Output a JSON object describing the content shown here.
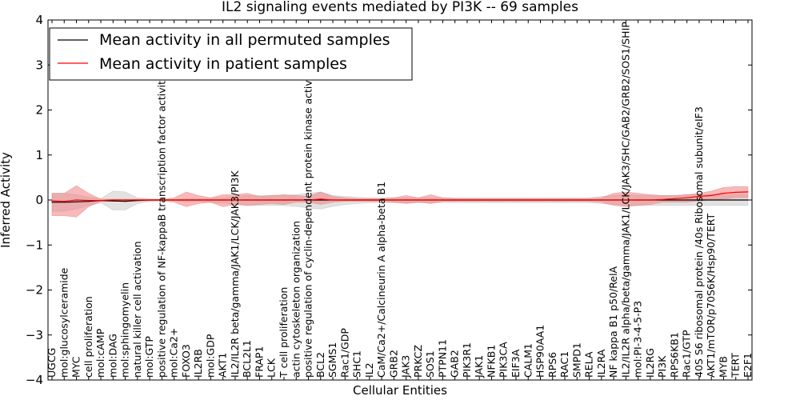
{
  "chart_data": {
    "type": "line",
    "title": "IL2 signaling events mediated by PI3K -- 69 samples",
    "xlabel": "Cellular Entities",
    "ylabel": "Inferred Activity",
    "ylim": [
      -4,
      4
    ],
    "yticks": [
      "−4",
      "−3",
      "−2",
      "−1",
      "0",
      "1",
      "2",
      "3",
      "4"
    ],
    "ytick_values": [
      -4,
      -3,
      -2,
      -1,
      0,
      1,
      2,
      3,
      4
    ],
    "categories": [
      "UGCG",
      "mol:glucosylceramide",
      "MYC",
      "cell proliferation",
      "mol:cAMP",
      "mol:DAG",
      "mol:sphingomyelin",
      "natural killer cell activation",
      "mol:GTP",
      "positive regulation of NF-kappaB transcription factor activity",
      "mol:Ca2+",
      "FOXO3",
      "IL2RB",
      "mol:GDP",
      "AKT1",
      "IL2/IL2R beta/gamma/JAK1/LCK/JAK3/PI3K",
      "BCL2L1",
      "FRAP1",
      "LCK",
      "T cell proliferation",
      "actin cytoskeleton organization",
      "positive regulation of cyclin-dependent protein kinase activity",
      "BCL2",
      "SGMS1",
      "Rac1/GDP",
      "SHC1",
      "IL2",
      "CaM/Ca2+/Calcineurin A alpha-beta B1",
      "GRB2",
      "JAK3",
      "PRKCZ",
      "SOS1",
      "PTPN11",
      "GAB2",
      "PIK3R1",
      "JAK1",
      "NFKB1",
      "PIK3CA",
      "EIF3A",
      "CALM1",
      "HSP90AA1",
      "RPS6",
      "RAC1",
      "SMPD1",
      "RELA",
      "IL2RA",
      "NF kappa B1 p50/RelA",
      "IL2/IL2R alpha/beta/gamma/JAK1/LCK/JAK3/SHC/GAB2/GRB2/SOS1/SHIP",
      "mol:PI-3-4-5-P3",
      "IL2RG",
      "PI3K",
      "RPS6KB1",
      "Rac1/GTP",
      "40S S6 ribosomal protein /40s Ribosomal subunit/eIF3",
      "AKT1/mTOR/p70S6K/Hsp90/TERT",
      "MYB",
      "TERT",
      "E2F1"
    ],
    "series": [
      {
        "name": "Mean activity in all permuted samples",
        "color": "#000000",
        "values": [
          -0.05,
          -0.05,
          -0.04,
          -0.03,
          -0.01,
          -0.02,
          -0.03,
          -0.01,
          0.0,
          0.0,
          0.0,
          0.0,
          0.0,
          0.0,
          0.0,
          0.0,
          0.0,
          0.0,
          0.0,
          0.0,
          0.0,
          0.0,
          0.0,
          0.0,
          0.0,
          0.0,
          0.0,
          0.0,
          0.0,
          0.0,
          0.0,
          0.0,
          0.0,
          0.0,
          0.0,
          0.0,
          0.0,
          0.0,
          0.0,
          0.0,
          0.0,
          0.0,
          0.0,
          0.0,
          0.0,
          0.0,
          0.0,
          0.0,
          0.0,
          0.0,
          0.0,
          0.0,
          0.0,
          0.0,
          0.0,
          0.0,
          0.0,
          0.0
        ],
        "band_upper": [
          0.15,
          0.15,
          0.12,
          0.06,
          0.03,
          0.2,
          0.18,
          0.05,
          0.02,
          0.01,
          0.01,
          0.03,
          0.02,
          0.05,
          0.05,
          0.08,
          0.1,
          0.1,
          0.1,
          0.1,
          0.12,
          0.15,
          0.18,
          0.1,
          0.08,
          0.06,
          0.05,
          0.05,
          0.05,
          0.05,
          0.05,
          0.05,
          0.05,
          0.05,
          0.05,
          0.05,
          0.05,
          0.05,
          0.05,
          0.05,
          0.05,
          0.05,
          0.05,
          0.05,
          0.05,
          0.08,
          0.1,
          0.12,
          0.1,
          0.1,
          0.1,
          0.1,
          0.12,
          0.12,
          0.12,
          0.12,
          0.12,
          0.12
        ],
        "band_lower": [
          -0.25,
          -0.25,
          -0.2,
          -0.12,
          -0.06,
          -0.22,
          -0.22,
          -0.08,
          -0.03,
          -0.01,
          -0.01,
          -0.04,
          -0.03,
          -0.06,
          -0.06,
          -0.1,
          -0.12,
          -0.12,
          -0.12,
          -0.12,
          -0.14,
          -0.18,
          -0.2,
          -0.14,
          -0.1,
          -0.08,
          -0.06,
          -0.06,
          -0.06,
          -0.06,
          -0.06,
          -0.06,
          -0.06,
          -0.06,
          -0.06,
          -0.06,
          -0.06,
          -0.06,
          -0.06,
          -0.06,
          -0.06,
          -0.06,
          -0.06,
          -0.06,
          -0.06,
          -0.08,
          -0.1,
          -0.12,
          -0.12,
          -0.12,
          -0.12,
          -0.12,
          -0.12,
          -0.12,
          -0.12,
          -0.12,
          -0.12,
          -0.12
        ]
      },
      {
        "name": "Mean activity in patient samples",
        "color": "#ff0000",
        "values": [
          -0.02,
          -0.03,
          0.0,
          -0.01,
          -0.01,
          0.0,
          0.0,
          0.0,
          0.0,
          0.0,
          0.0,
          0.0,
          0.0,
          0.0,
          0.0,
          0.0,
          0.0,
          0.0,
          0.0,
          0.0,
          0.0,
          0.0,
          0.02,
          0.0,
          0.0,
          0.0,
          0.0,
          0.0,
          0.0,
          0.0,
          0.0,
          0.0,
          0.0,
          0.0,
          0.0,
          0.0,
          0.0,
          0.0,
          0.0,
          0.0,
          0.0,
          0.0,
          0.0,
          0.0,
          0.0,
          0.0,
          0.0,
          0.0,
          0.0,
          0.0,
          0.01,
          0.03,
          0.05,
          0.08,
          0.1,
          0.15,
          0.17,
          0.18
        ],
        "band_upper": [
          0.15,
          0.15,
          0.32,
          0.15,
          0.02,
          0.02,
          0.02,
          0.02,
          0.02,
          0.02,
          0.05,
          0.18,
          0.1,
          0.05,
          0.12,
          0.12,
          0.15,
          0.08,
          0.1,
          0.12,
          0.1,
          0.08,
          0.18,
          0.08,
          0.05,
          0.03,
          0.03,
          0.03,
          0.05,
          0.1,
          0.05,
          0.12,
          0.05,
          0.03,
          0.03,
          0.03,
          0.03,
          0.03,
          0.03,
          0.03,
          0.03,
          0.03,
          0.03,
          0.03,
          0.03,
          0.05,
          0.15,
          0.18,
          0.15,
          0.12,
          0.1,
          0.1,
          0.12,
          0.15,
          0.2,
          0.28,
          0.3,
          0.3
        ],
        "band_lower": [
          -0.35,
          -0.35,
          -0.38,
          -0.15,
          -0.03,
          -0.03,
          -0.02,
          -0.02,
          -0.02,
          -0.02,
          -0.05,
          -0.15,
          -0.08,
          -0.05,
          -0.15,
          -0.1,
          -0.12,
          -0.1,
          -0.08,
          -0.1,
          -0.05,
          -0.05,
          -0.1,
          -0.05,
          -0.03,
          -0.03,
          -0.03,
          -0.03,
          -0.05,
          -0.08,
          -0.05,
          -0.08,
          -0.03,
          -0.03,
          -0.03,
          -0.03,
          -0.03,
          -0.03,
          -0.03,
          -0.03,
          -0.03,
          -0.03,
          -0.03,
          -0.03,
          -0.03,
          -0.05,
          -0.12,
          -0.15,
          -0.12,
          -0.1,
          -0.05,
          -0.05,
          -0.05,
          -0.02,
          0.0,
          0.02,
          0.05,
          0.05
        ]
      }
    ],
    "legend": "top-left",
    "grid": false
  }
}
